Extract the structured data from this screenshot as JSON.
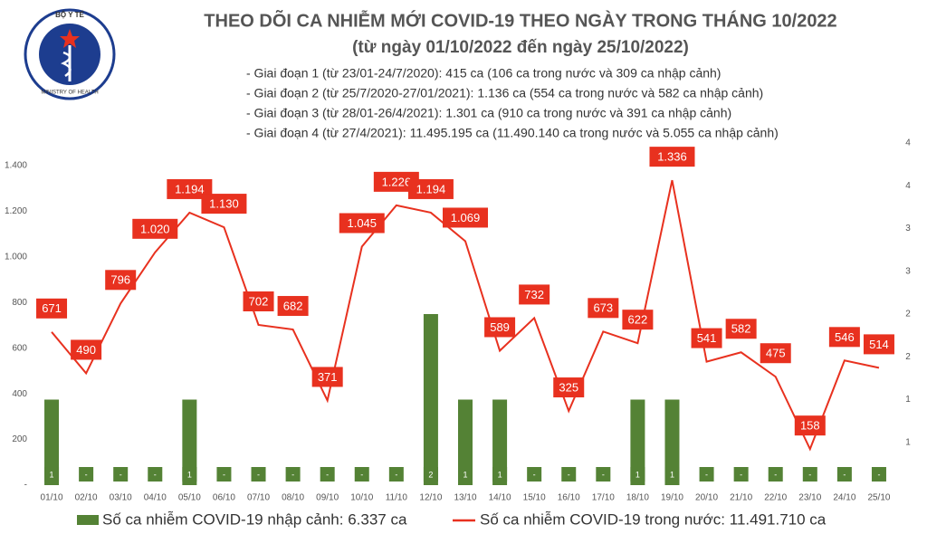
{
  "chart_data": {
    "type": "bar-line",
    "logo_text": [
      "BỘ Y TẾ",
      "MINISTRY OF HEALTH"
    ],
    "title": "THEO DÕI CA NHIỄM MỚI COVID-19 THEO NGÀY TRONG THÁNG 10/2022",
    "subtitle": "(từ ngày 01/10/2022 đến ngày 25/10/2022)",
    "notes": [
      "- Giai đoạn 1 (từ 23/01-24/7/2020): 415 ca (106 ca trong nước và 309 ca nhập cảnh)",
      "- Giai đoạn 2 (từ 25/7/2020-27/01/2021): 1.136 ca (554 ca trong nước và 582 ca nhập cảnh)",
      "- Giai đoạn 3 (từ 28/01-26/4/2021): 1.301 ca (910 ca trong nước và 391 ca nhập cảnh)",
      "- Giai đoạn 4 (từ 27/4/2021): 11.495.195 ca (11.490.140 ca trong nước và 5.055 ca nhập cảnh)"
    ],
    "categories": [
      "01/10",
      "02/10",
      "03/10",
      "04/10",
      "05/10",
      "06/10",
      "07/10",
      "08/10",
      "09/10",
      "10/10",
      "11/10",
      "12/10",
      "13/10",
      "14/10",
      "15/10",
      "16/10",
      "17/10",
      "18/10",
      "19/10",
      "20/10",
      "21/10",
      "22/10",
      "23/10",
      "24/10",
      "25/10"
    ],
    "series": [
      {
        "name": "Số ca nhiễm COVID-19 nhập cảnh: 6.337 ca",
        "type": "bar",
        "axis": "y2",
        "color": "#548235",
        "values": [
          1,
          0,
          0,
          0,
          1,
          0,
          0,
          0,
          0,
          0,
          0,
          2,
          1,
          1,
          0,
          0,
          0,
          1,
          1,
          0,
          0,
          0,
          0,
          0,
          0
        ],
        "value_labels": [
          "1",
          "-",
          "-",
          "-",
          "1",
          "-",
          "-",
          "-",
          "-",
          "-",
          "-",
          "2",
          "1",
          "1",
          "-",
          "-",
          "-",
          "1",
          "1",
          "-",
          "-",
          "-",
          "-",
          "-",
          "-"
        ]
      },
      {
        "name": "Số ca nhiễm COVID-19 trong nước: 11.491.710 ca",
        "type": "line",
        "color": "#e8311f",
        "values": [
          671,
          490,
          796,
          1020,
          1194,
          1130,
          702,
          682,
          371,
          1045,
          1226,
          1194,
          1069,
          589,
          732,
          325,
          673,
          622,
          1336,
          541,
          582,
          475,
          158,
          546,
          514
        ],
        "value_labels": [
          "671",
          "490",
          "796",
          "1.020",
          "1.194",
          "1.130",
          "702",
          "682",
          "371",
          "1.045",
          "1.226",
          "1.194",
          "1.069",
          "589",
          "732",
          "325",
          "673",
          "622",
          "1.336",
          "541",
          "582",
          "475",
          "158",
          "546",
          "514"
        ]
      }
    ],
    "ylim": [
      0,
      1400
    ],
    "yticks": [
      {
        "value": 0,
        "label": "-"
      },
      200,
      400,
      600,
      800,
      {
        "value": 1000,
        "label": "1.000"
      },
      {
        "value": 1200,
        "label": "1.200"
      },
      {
        "value": 1400,
        "label": "1.400"
      }
    ],
    "y2lim": [
      0,
      4
    ],
    "y2ticks": [
      {
        "value": 0.5,
        "label": "1"
      },
      1,
      {
        "value": 1.5,
        "label": "2"
      },
      2,
      {
        "value": 2.5,
        "label": "3"
      },
      3,
      {
        "value": 3.5,
        "label": "4"
      },
      4
    ]
  }
}
